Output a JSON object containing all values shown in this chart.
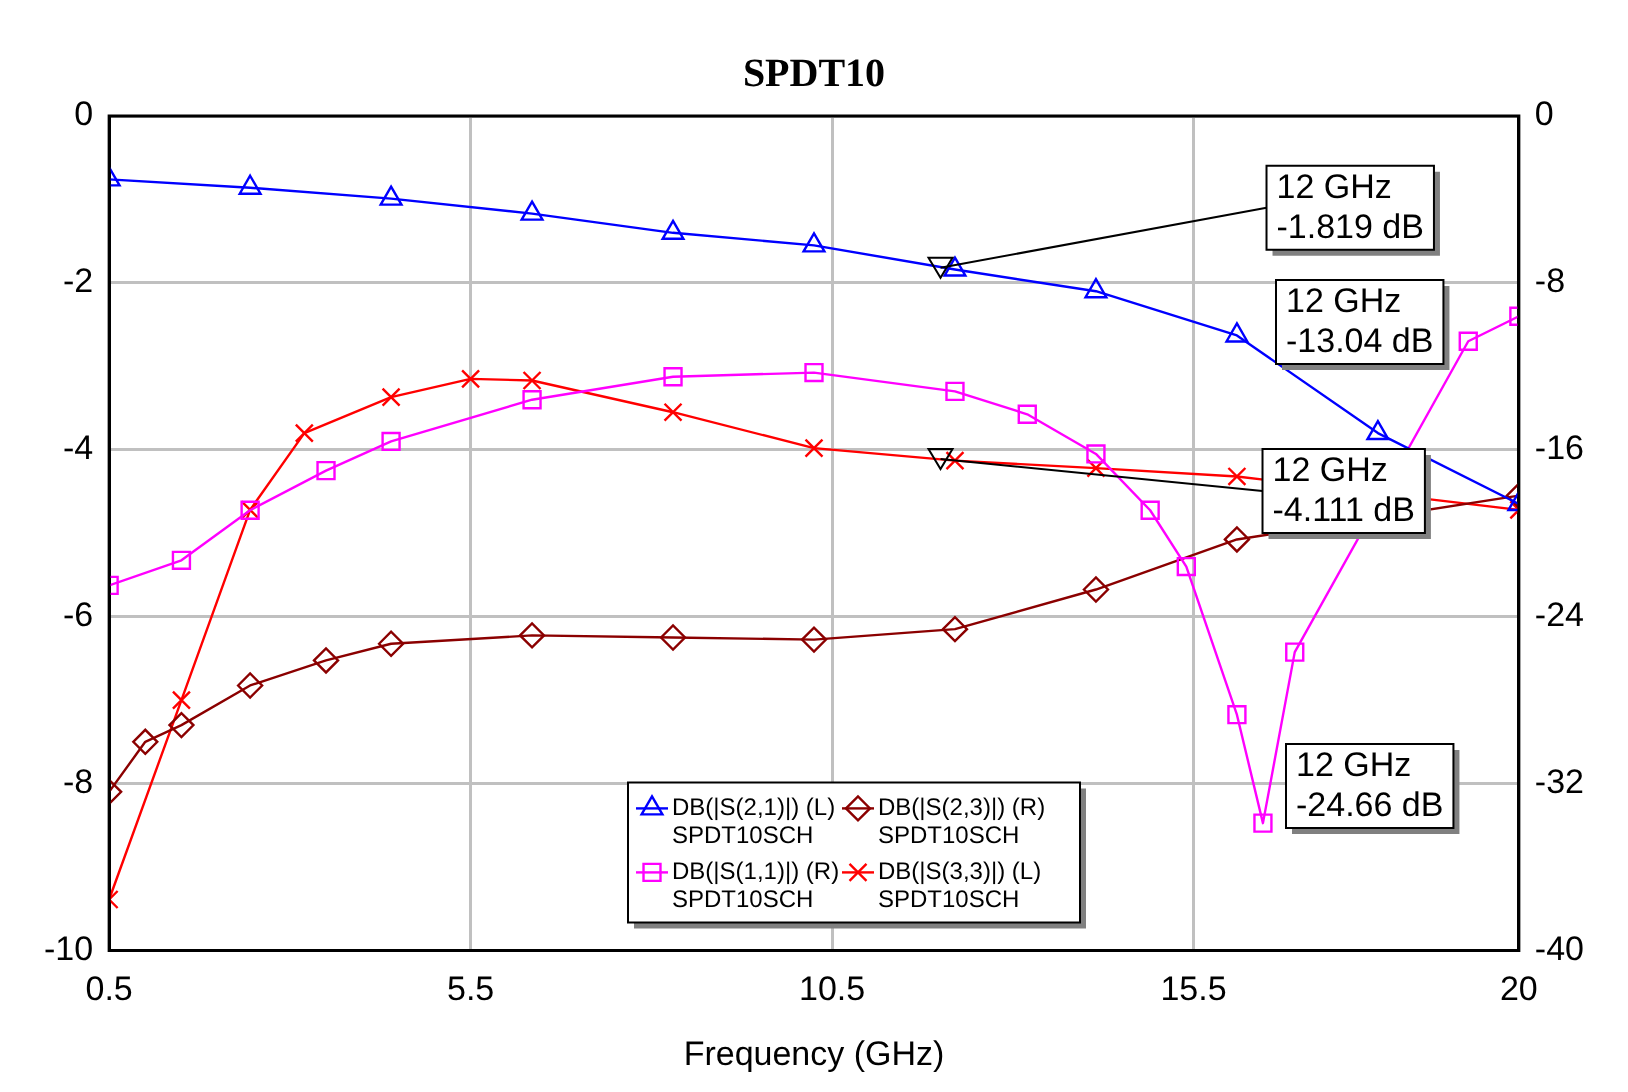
{
  "chart_data": {
    "type": "line",
    "title": "SPDT10",
    "xlabel": "Frequency (GHz)",
    "xlim": [
      0.5,
      20
    ],
    "xticks": [
      0.5,
      5.5,
      10.5,
      15.5,
      20
    ],
    "ylim": [
      -10,
      0
    ],
    "yticks": [
      -10,
      -8,
      -6,
      -4,
      -2,
      0
    ],
    "y2lim": [
      -40,
      0
    ],
    "y2ticks": [
      -40,
      -32,
      -24,
      -16,
      -8,
      0
    ],
    "grid": true,
    "legend": "bottom",
    "line_style": "solid",
    "series": [
      {
        "name": "DB(|S(2,1)|) (L)\nSPDT10SCH",
        "color": "#0000ff",
        "marker": "triangle",
        "axis": "y",
        "x": [
          0.5,
          2.45,
          4.4,
          6.35,
          8.3,
          10.25,
          12.2,
          14.15,
          16.1,
          18.05,
          20
        ],
        "values": [
          -0.76,
          -0.86,
          -0.99,
          -1.17,
          -1.4,
          -1.55,
          -1.84,
          -2.1,
          -2.63,
          -3.8,
          -4.65
        ]
      },
      {
        "name": "DB(|S(1,1)|) (R)\nSPDT10SCH",
        "color": "#ff00ff",
        "marker": "square",
        "axis": "y2",
        "x": [
          0.5,
          1.5,
          2.45,
          3.5,
          4.4,
          6.35,
          8.3,
          10.25,
          12.2,
          13.2,
          14.15,
          14.9,
          15.4,
          16.1,
          16.46,
          16.9,
          19.3,
          20
        ],
        "values": [
          -22.5,
          -21.3,
          -18.9,
          -17.0,
          -15.6,
          -13.6,
          -12.5,
          -12.3,
          -13.2,
          -14.3,
          -16.2,
          -18.9,
          -21.6,
          -28.7,
          -33.9,
          -25.7,
          -10.8,
          -9.6
        ]
      },
      {
        "name": "DB(|S(2,3)|) (R)\nSPDT10SCH",
        "color": "#8b0000",
        "marker": "diamond",
        "axis": "y2",
        "x": [
          0.5,
          1.0,
          1.5,
          2.45,
          3.5,
          4.4,
          6.35,
          8.3,
          10.25,
          12.2,
          14.15,
          16.1,
          20
        ],
        "values": [
          -32.4,
          -30.0,
          -29.2,
          -27.3,
          -26.1,
          -25.3,
          -24.9,
          -25.0,
          -25.1,
          -24.6,
          -22.7,
          -20.3,
          -18.2
        ]
      },
      {
        "name": "DB(|S(3,3)|) (L)\nSPDT10SCH",
        "color": "#ff0000",
        "marker": "cross",
        "axis": "y",
        "x": [
          0.5,
          1.5,
          2.45,
          3.2,
          4.4,
          5.5,
          6.35,
          8.3,
          10.25,
          12.2,
          14.15,
          16.1,
          20
        ],
        "values": [
          -9.39,
          -7.0,
          -4.72,
          -3.8,
          -3.37,
          -3.15,
          -3.17,
          -3.55,
          -3.98,
          -4.13,
          -4.22,
          -4.32,
          -4.72
        ]
      }
    ],
    "annotations": [
      {
        "text": "12 GHz\n-1.819 dB",
        "x": 12,
        "y": -1.819
      },
      "12 GHz\n-13.04 dB",
      {
        "text": "12 GHz\n-4.111 dB",
        "x": 12,
        "y": -4.111
      },
      "12 GHz\n-24.66 dB"
    ]
  }
}
